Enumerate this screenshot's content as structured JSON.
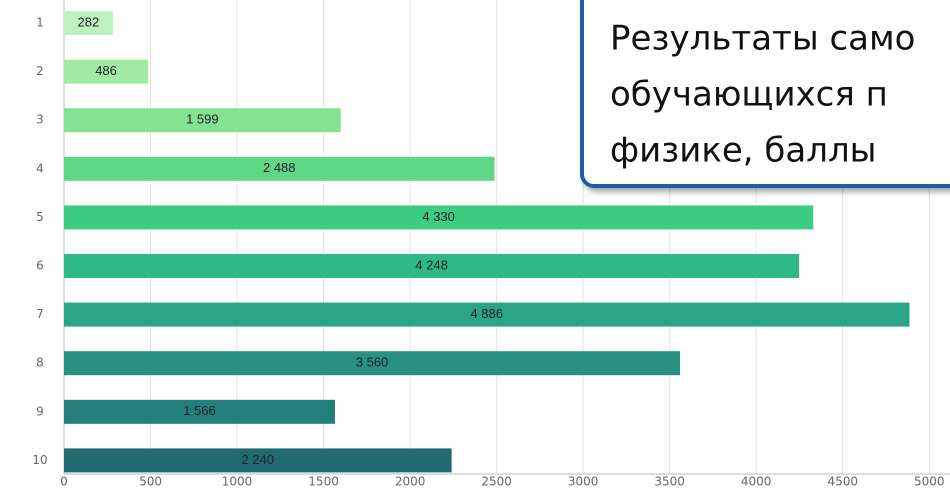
{
  "chart_data": {
    "type": "bar",
    "orientation": "horizontal",
    "title_lines": [
      "Результаты само",
      "обучающихся п",
      "физике, баллы"
    ],
    "categories": [
      "1",
      "2",
      "3",
      "4",
      "5",
      "6",
      "7",
      "8",
      "9",
      "10"
    ],
    "values": [
      282,
      486,
      1599,
      2488,
      4330,
      4248,
      4886,
      3560,
      1566,
      2240
    ],
    "value_labels": [
      "282",
      "486",
      "1 599",
      "2 488",
      "4 330",
      "4 248",
      "4 886",
      "3 560",
      "1 566",
      "2 240"
    ],
    "colors": [
      "#bff0c0",
      "#a3eaa5",
      "#84e290",
      "#5ed886",
      "#3ccd82",
      "#2fba84",
      "#2aa486",
      "#289182",
      "#227f7c",
      "#1f6b70"
    ],
    "xlim": [
      0,
      5120
    ],
    "xticks": [
      0,
      500,
      1000,
      1500,
      2000,
      2500,
      3000,
      3500,
      4000,
      4500,
      5000
    ],
    "grid": true
  }
}
